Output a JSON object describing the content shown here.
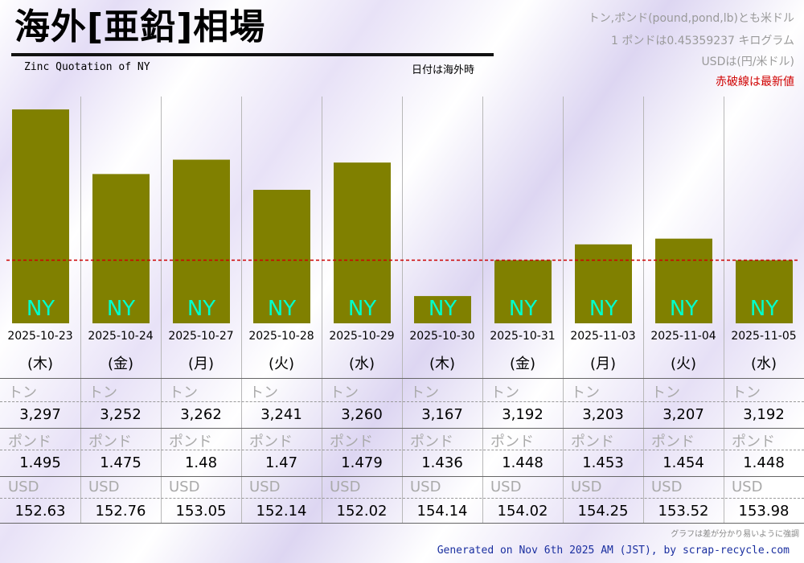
{
  "header": {
    "title": "海外[亜鉛]相場",
    "subtitle": "Zinc Quotation of NY",
    "date_note": "日付は海外時",
    "notes": [
      "トン,ポンド(pound,pond,lb)とも米ドル",
      "1 ポンドは0.45359237 キログラム",
      "USDは(円/米ドル)",
      "赤破線は最新値"
    ]
  },
  "colors": {
    "bar": "#808000",
    "bar_label": "#00ffcc",
    "latest_line": "#cc0000",
    "footer_text": "#1a2fa0"
  },
  "chart_data": {
    "type": "bar",
    "categories": [
      "2025-10-23",
      "2025-10-24",
      "2025-10-27",
      "2025-10-28",
      "2025-10-29",
      "2025-10-30",
      "2025-10-31",
      "2025-11-03",
      "2025-11-04",
      "2025-11-05"
    ],
    "weekdays": [
      "(木)",
      "(金)",
      "(月)",
      "(火)",
      "(水)",
      "(木)",
      "(金)",
      "(月)",
      "(火)",
      "(水)"
    ],
    "bar_label": "NY",
    "values": [
      3297,
      3252,
      3262,
      3241,
      3260,
      3167,
      3192,
      3203,
      3207,
      3192
    ],
    "ylim": [
      3148,
      3306
    ],
    "latest_value": 3192,
    "grid": true
  },
  "table": {
    "rows": [
      {
        "unit": "トン",
        "values": [
          "3,297",
          "3,252",
          "3,262",
          "3,241",
          "3,260",
          "3,167",
          "3,192",
          "3,203",
          "3,207",
          "3,192"
        ]
      },
      {
        "unit": "ポンド",
        "values": [
          "1.495",
          "1.475",
          "1.48",
          "1.47",
          "1.479",
          "1.436",
          "1.448",
          "1.453",
          "1.454",
          "1.448"
        ]
      },
      {
        "unit": "USD",
        "values": [
          "152.63",
          "152.76",
          "153.05",
          "152.14",
          "152.02",
          "154.14",
          "154.02",
          "154.25",
          "153.52",
          "153.98"
        ]
      }
    ]
  },
  "footer": {
    "note": "グラフは差が分かり易いように強調",
    "generated": "Generated on Nov 6th 2025 AM (JST), by scrap-recycle.com"
  }
}
